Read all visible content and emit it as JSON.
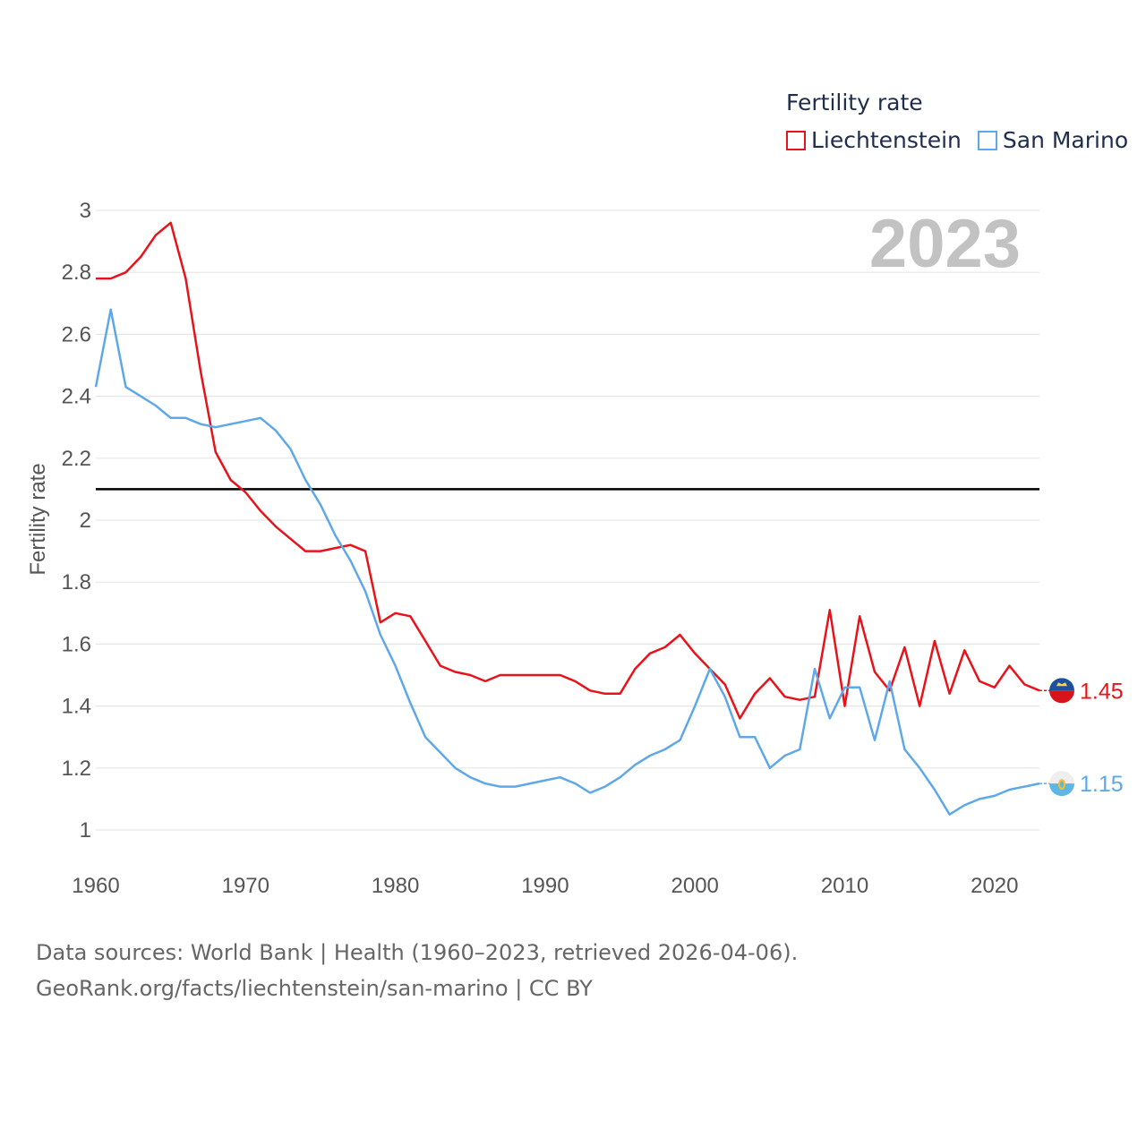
{
  "legend": {
    "title": "Fertility rate",
    "items": [
      {
        "label": "Liechtenstein",
        "color": "#e8131a"
      },
      {
        "label": "San Marino",
        "color": "#5fa8e8"
      }
    ]
  },
  "chart_data": {
    "type": "line",
    "year_label": "2023",
    "ylabel": "Fertility rate",
    "xlabel": "",
    "xlim": [
      1960,
      2023
    ],
    "ylim": [
      1,
      3
    ],
    "x_ticks": [
      "1960",
      "1970",
      "1980",
      "1990",
      "2000",
      "2010",
      "2020"
    ],
    "y_ticks": [
      "1",
      "1.2",
      "1.4",
      "1.6",
      "1.8",
      "2",
      "2.2",
      "2.4",
      "2.6",
      "2.8",
      "3"
    ],
    "reference_line": 2.1,
    "x": [
      1960,
      1961,
      1962,
      1963,
      1964,
      1965,
      1966,
      1967,
      1968,
      1969,
      1970,
      1971,
      1972,
      1973,
      1974,
      1975,
      1976,
      1977,
      1978,
      1979,
      1980,
      1981,
      1982,
      1983,
      1984,
      1985,
      1986,
      1987,
      1988,
      1989,
      1990,
      1991,
      1992,
      1993,
      1994,
      1995,
      1996,
      1997,
      1998,
      1999,
      2000,
      2001,
      2002,
      2003,
      2004,
      2005,
      2006,
      2007,
      2008,
      2009,
      2010,
      2011,
      2012,
      2013,
      2014,
      2015,
      2016,
      2017,
      2018,
      2019,
      2020,
      2021,
      2022,
      2023
    ],
    "series": [
      {
        "name": "Liechtenstein",
        "color": "#e8131a",
        "end_label": "1.45",
        "values": [
          2.78,
          2.78,
          2.8,
          2.85,
          2.92,
          2.96,
          2.78,
          2.48,
          2.22,
          2.13,
          2.09,
          2.03,
          1.98,
          1.94,
          1.9,
          1.9,
          1.91,
          1.92,
          1.9,
          1.67,
          1.7,
          1.69,
          1.61,
          1.53,
          1.51,
          1.5,
          1.48,
          1.5,
          1.5,
          1.5,
          1.5,
          1.5,
          1.48,
          1.45,
          1.44,
          1.44,
          1.52,
          1.57,
          1.59,
          1.63,
          1.57,
          1.52,
          1.47,
          1.36,
          1.44,
          1.49,
          1.43,
          1.42,
          1.43,
          1.71,
          1.4,
          1.69,
          1.51,
          1.45,
          1.59,
          1.4,
          1.61,
          1.44,
          1.58,
          1.48,
          1.46,
          1.53,
          1.47,
          1.45
        ]
      },
      {
        "name": "San Marino",
        "color": "#5fa8e8",
        "end_label": "1.15",
        "values": [
          2.43,
          2.68,
          2.43,
          2.4,
          2.37,
          2.33,
          2.33,
          2.31,
          2.3,
          2.31,
          2.32,
          2.33,
          2.29,
          2.23,
          2.13,
          2.05,
          1.95,
          1.87,
          1.77,
          1.63,
          1.53,
          1.41,
          1.3,
          1.25,
          1.2,
          1.17,
          1.15,
          1.14,
          1.14,
          1.15,
          1.16,
          1.17,
          1.15,
          1.12,
          1.14,
          1.17,
          1.21,
          1.24,
          1.26,
          1.29,
          1.4,
          1.52,
          1.43,
          1.3,
          1.3,
          1.2,
          1.24,
          1.26,
          1.52,
          1.36,
          1.46,
          1.46,
          1.29,
          1.48,
          1.26,
          1.2,
          1.13,
          1.05,
          1.08,
          1.1,
          1.11,
          1.13,
          1.14,
          1.15
        ]
      }
    ]
  },
  "source": {
    "line1": "Data sources: World Bank | Health (1960–2023, retrieved 2026-04-06).",
    "line2": "GeoRank.org/facts/liechtenstein/san-marino | CC BY"
  }
}
